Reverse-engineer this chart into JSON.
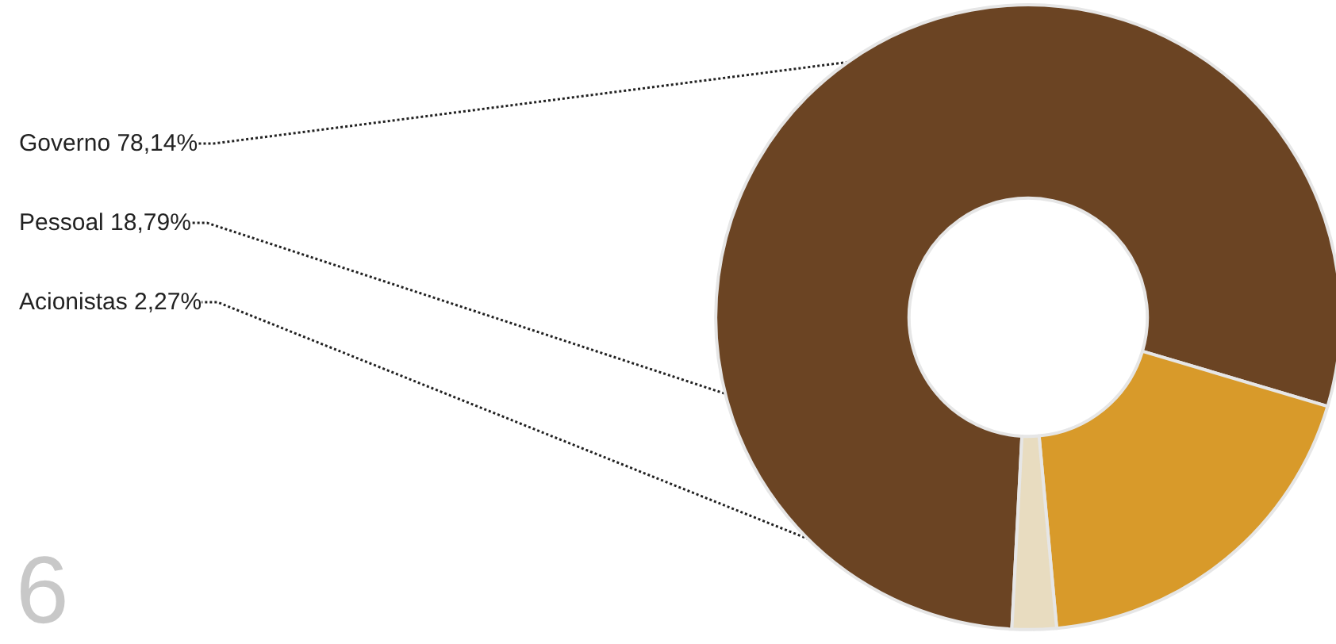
{
  "chart_data": {
    "type": "donut",
    "categories": [
      "Governo",
      "Pessoal",
      "Acionistas"
    ],
    "values": [
      78.14,
      18.79,
      2.27
    ],
    "colors": [
      "#6b4423",
      "#d89a2a",
      "#e8dcc0"
    ],
    "value_labels": [
      "78,14%",
      "18,79%",
      "2,27%"
    ],
    "legend": false,
    "annotations": [
      "6"
    ]
  }
}
